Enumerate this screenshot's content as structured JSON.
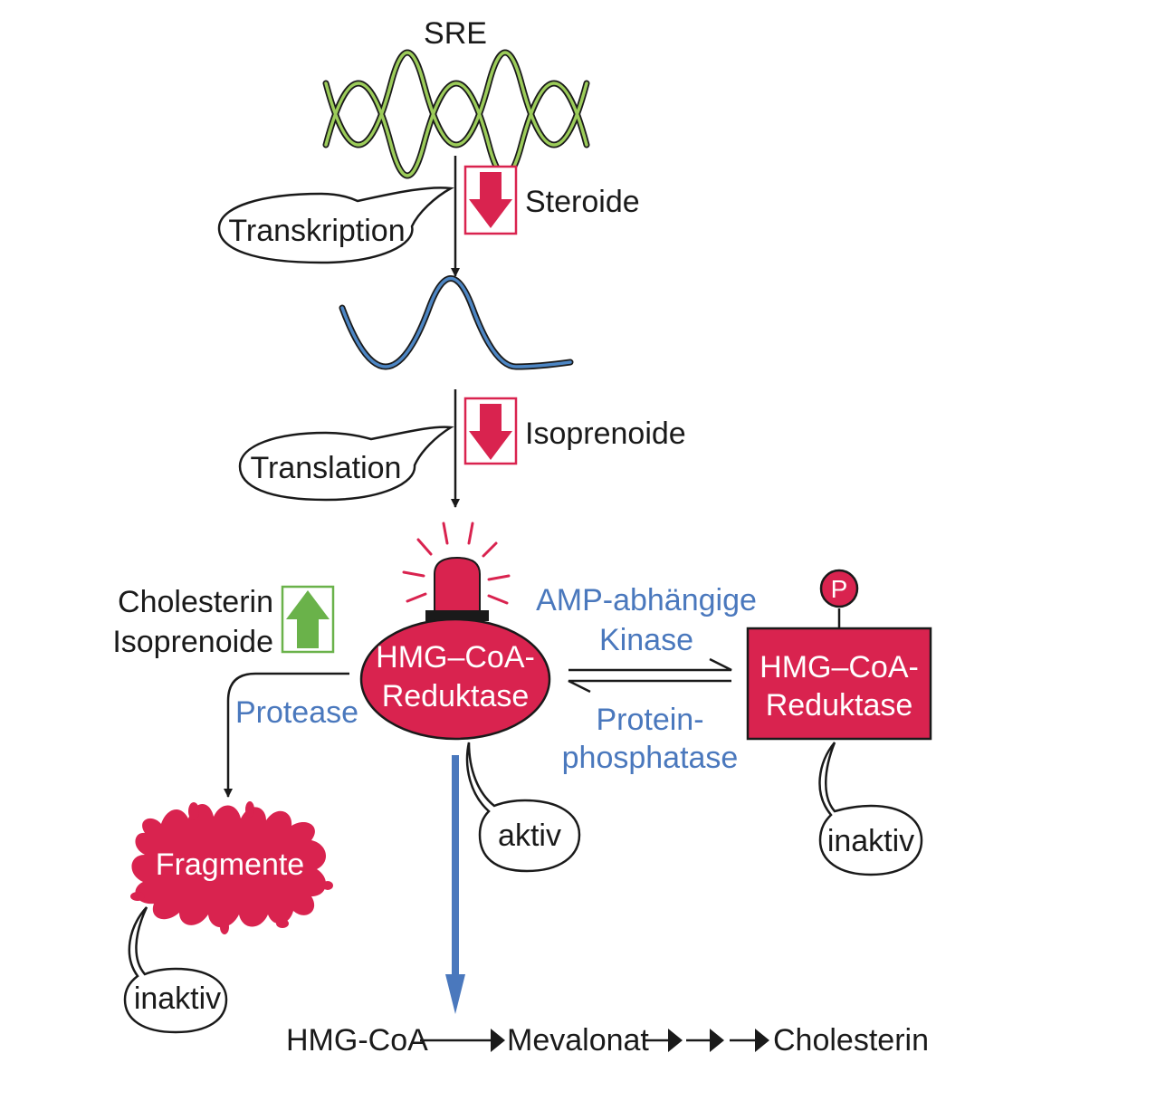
{
  "labels": {
    "sre": "SRE",
    "transkription": "Transkription",
    "steroide": "Steroide",
    "translation": "Translation",
    "isoprenoide_inhibitor": "Isoprenoide",
    "cholesterin_activator": "Cholesterin",
    "isoprenoide_activator": "Isoprenoide",
    "hmg_active_line1": "HMG–CoA-",
    "hmg_active_line2": "Reduktase",
    "hmg_inactive_line1": "HMG–CoA-",
    "hmg_inactive_line2": "Reduktase",
    "phosphate": "P",
    "kinase_line1": "AMP-abhängige",
    "kinase_line2": "Kinase",
    "phosphatase_line1": "Protein-",
    "phosphatase_line2": "phosphatase",
    "protease": "Protease",
    "fragmente": "Fragmente",
    "aktiv": "aktiv",
    "inaktiv_right": "inaktiv",
    "inaktiv_left": "inaktiv",
    "pathway_hmgcoa": "HMG-CoA",
    "pathway_mevalonat": "Mevalonat",
    "pathway_cholesterin": "Cholesterin"
  },
  "colors": {
    "crimson": "#d9234f",
    "green": "#6ab24a",
    "blue": "#4a78bd",
    "dna_green": "#9ccc5a",
    "mrna_blue": "#4d86c4",
    "black": "#1a1a1a"
  }
}
